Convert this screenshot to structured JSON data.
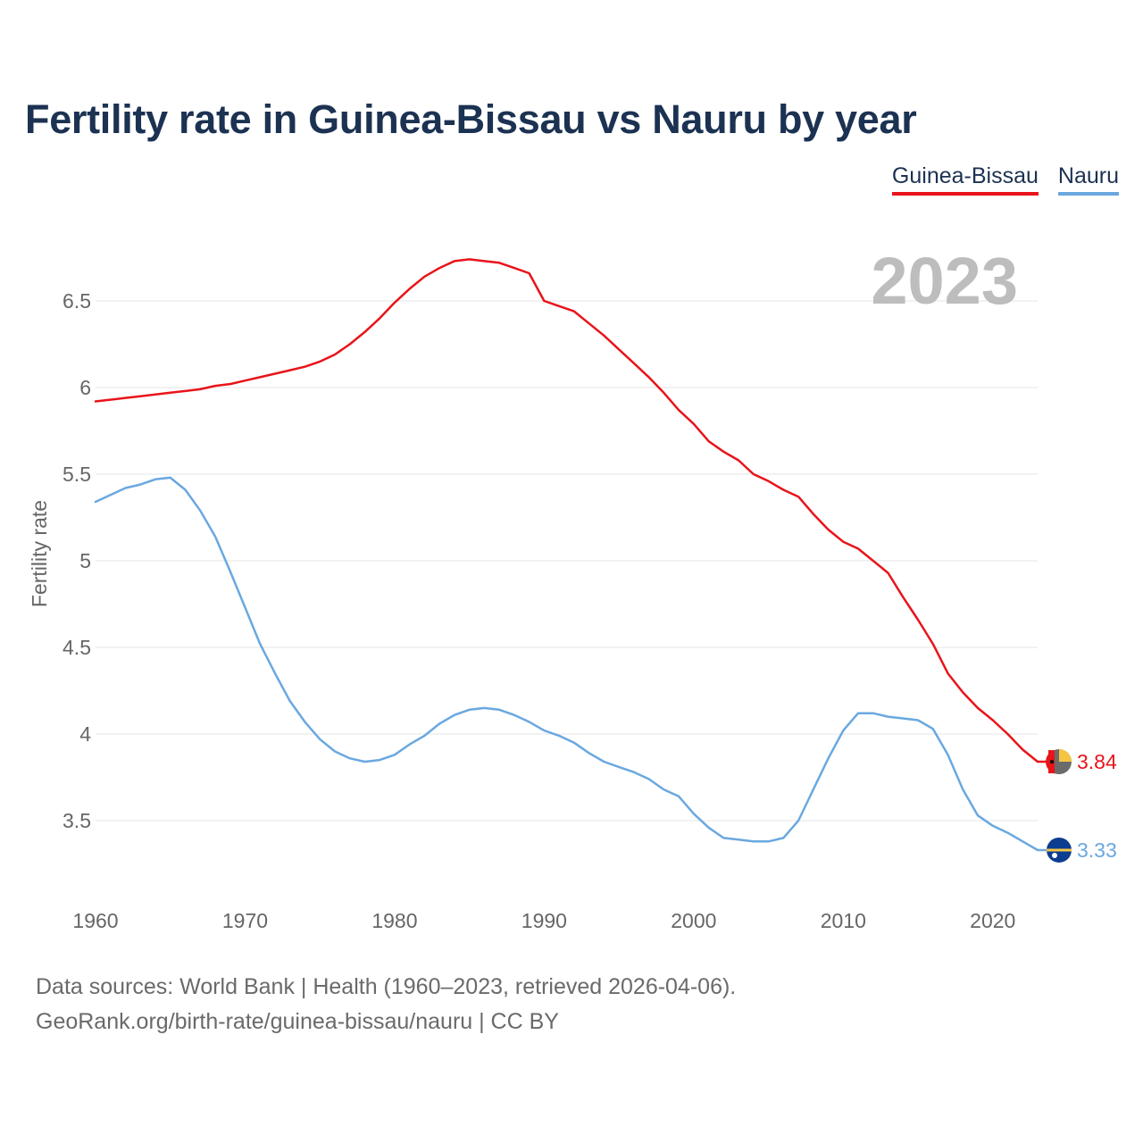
{
  "title": "Fertility rate in Guinea-Bissau vs Nauru by year",
  "footer": {
    "line1": "Data sources: World Bank | Health (1960–2023, retrieved 2026-04-06).",
    "line2": "GeoRank.org/birth-rate/guinea-bissau/nauru | CC BY"
  },
  "chart_data": {
    "type": "line",
    "title": "Fertility rate in Guinea-Bissau vs Nauru by year",
    "xlabel": "",
    "ylabel": "Fertility rate",
    "year_label": "2023",
    "xlim": [
      1960,
      2023
    ],
    "ylim": [
      3.0,
      7.0
    ],
    "x_ticks": [
      1960,
      1970,
      1980,
      1990,
      2000,
      2010,
      2020
    ],
    "y_ticks": [
      3.5,
      4,
      4.5,
      5,
      5.5,
      6,
      6.5
    ],
    "y_tick_labels": [
      "3.5",
      "4",
      "4.5",
      "5",
      "5.5",
      "6",
      "6.5"
    ],
    "legend_position": "top-right",
    "x": [
      1960,
      1961,
      1962,
      1963,
      1964,
      1965,
      1966,
      1967,
      1968,
      1969,
      1970,
      1971,
      1972,
      1973,
      1974,
      1975,
      1976,
      1977,
      1978,
      1979,
      1980,
      1981,
      1982,
      1983,
      1984,
      1985,
      1986,
      1987,
      1988,
      1989,
      1990,
      1991,
      1992,
      1993,
      1994,
      1995,
      1996,
      1997,
      1998,
      1999,
      2000,
      2001,
      2002,
      2003,
      2004,
      2005,
      2006,
      2007,
      2008,
      2009,
      2010,
      2011,
      2012,
      2013,
      2014,
      2015,
      2016,
      2017,
      2018,
      2019,
      2020,
      2021,
      2022,
      2023
    ],
    "series": [
      {
        "name": "Guinea-Bissau",
        "color": "#e8141a",
        "end_label": "3.84",
        "values": [
          5.92,
          5.93,
          5.94,
          5.95,
          5.96,
          5.97,
          5.98,
          5.99,
          6.01,
          6.02,
          6.04,
          6.06,
          6.08,
          6.1,
          6.12,
          6.15,
          6.19,
          6.25,
          6.32,
          6.4,
          6.49,
          6.57,
          6.64,
          6.69,
          6.73,
          6.74,
          6.73,
          6.72,
          6.69,
          6.66,
          6.5,
          6.47,
          6.44,
          6.37,
          6.3,
          6.22,
          6.14,
          6.06,
          5.97,
          5.87,
          5.79,
          5.69,
          5.63,
          5.58,
          5.5,
          5.46,
          5.41,
          5.37,
          5.27,
          5.18,
          5.11,
          5.07,
          5.0,
          4.93,
          4.79,
          4.66,
          4.52,
          4.35,
          4.24,
          4.15,
          4.08,
          4.0,
          3.91,
          3.84
        ]
      },
      {
        "name": "Nauru",
        "color": "#6aa8e0",
        "end_label": "3.33",
        "values": [
          5.34,
          5.38,
          5.42,
          5.44,
          5.47,
          5.48,
          5.41,
          5.29,
          5.14,
          4.94,
          4.73,
          4.52,
          4.35,
          4.19,
          4.07,
          3.97,
          3.9,
          3.86,
          3.84,
          3.85,
          3.88,
          3.94,
          3.99,
          4.06,
          4.11,
          4.14,
          4.15,
          4.14,
          4.11,
          4.07,
          4.02,
          3.99,
          3.95,
          3.89,
          3.84,
          3.81,
          3.78,
          3.74,
          3.68,
          3.64,
          3.54,
          3.46,
          3.4,
          3.39,
          3.38,
          3.38,
          3.4,
          3.5,
          3.68,
          3.86,
          4.02,
          4.12,
          4.12,
          4.1,
          4.09,
          4.08,
          4.03,
          3.88,
          3.68,
          3.53,
          3.47,
          3.43,
          3.38,
          3.33
        ]
      }
    ]
  }
}
